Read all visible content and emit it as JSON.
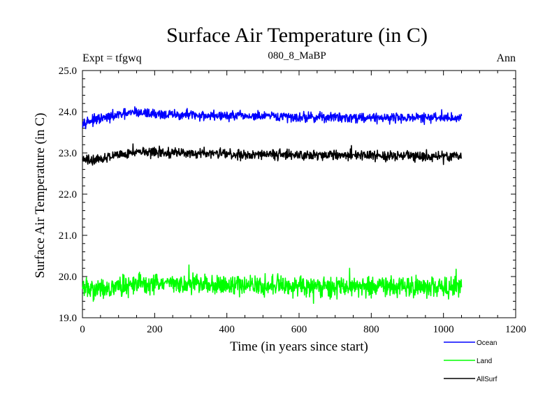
{
  "chart_data": {
    "type": "line",
    "title": "Surface Air Temperature (in C)",
    "subtitle": "080_8_MaBP",
    "left_label": "Expt = tfgwq",
    "right_label": "Ann",
    "xlabel": "Time (in years since start)",
    "ylabel": "Surface Air Temperature (in C)",
    "xlim": [
      0,
      1200
    ],
    "ylim": [
      19.0,
      25.0
    ],
    "x_ticks": [
      0,
      200,
      400,
      600,
      800,
      1000,
      1200
    ],
    "y_ticks": [
      19.0,
      20.0,
      21.0,
      22.0,
      23.0,
      24.0,
      25.0
    ],
    "x_tick_labels": [
      "0",
      "200",
      "400",
      "600",
      "800",
      "1000",
      "1200"
    ],
    "y_tick_labels": [
      "19.0",
      "20.0",
      "21.0",
      "22.0",
      "23.0",
      "24.0",
      "25.0"
    ],
    "x_end": 1050,
    "legend_position": "bottom-right",
    "series": [
      {
        "name": "Ocean",
        "color": "#0000ff",
        "mean": 23.88,
        "noise": 0.07,
        "anchors": [
          [
            0,
            23.75
          ],
          [
            50,
            23.82
          ],
          [
            100,
            23.92
          ],
          [
            150,
            23.98
          ],
          [
            250,
            23.92
          ],
          [
            400,
            23.9
          ],
          [
            600,
            23.87
          ],
          [
            800,
            23.86
          ],
          [
            1000,
            23.85
          ],
          [
            1050,
            23.86
          ]
        ],
        "peaks": [
          [
            145,
            24.12
          ],
          [
            290,
            24.08
          ],
          [
            995,
            24.05
          ]
        ]
      },
      {
        "name": "Land",
        "color": "#00ff00",
        "mean": 19.78,
        "noise": 0.14,
        "anchors": [
          [
            0,
            19.72
          ],
          [
            50,
            19.7
          ],
          [
            150,
            19.82
          ],
          [
            300,
            19.82
          ],
          [
            500,
            19.78
          ],
          [
            700,
            19.76
          ],
          [
            900,
            19.76
          ],
          [
            1050,
            19.76
          ]
        ],
        "peaks": [
          [
            295,
            20.28
          ],
          [
            740,
            20.2
          ],
          [
            1035,
            20.18
          ],
          [
            640,
            19.35
          ],
          [
            30,
            19.4
          ]
        ]
      },
      {
        "name": "AllSurf",
        "color": "#000000",
        "mean": 22.95,
        "noise": 0.07,
        "anchors": [
          [
            0,
            22.82
          ],
          [
            50,
            22.85
          ],
          [
            100,
            22.98
          ],
          [
            150,
            23.02
          ],
          [
            300,
            23.0
          ],
          [
            500,
            22.96
          ],
          [
            700,
            22.94
          ],
          [
            900,
            22.93
          ],
          [
            1050,
            22.92
          ]
        ],
        "peaks": [
          [
            140,
            23.22
          ],
          [
            745,
            23.18
          ],
          [
            1000,
            22.72
          ]
        ]
      }
    ]
  }
}
